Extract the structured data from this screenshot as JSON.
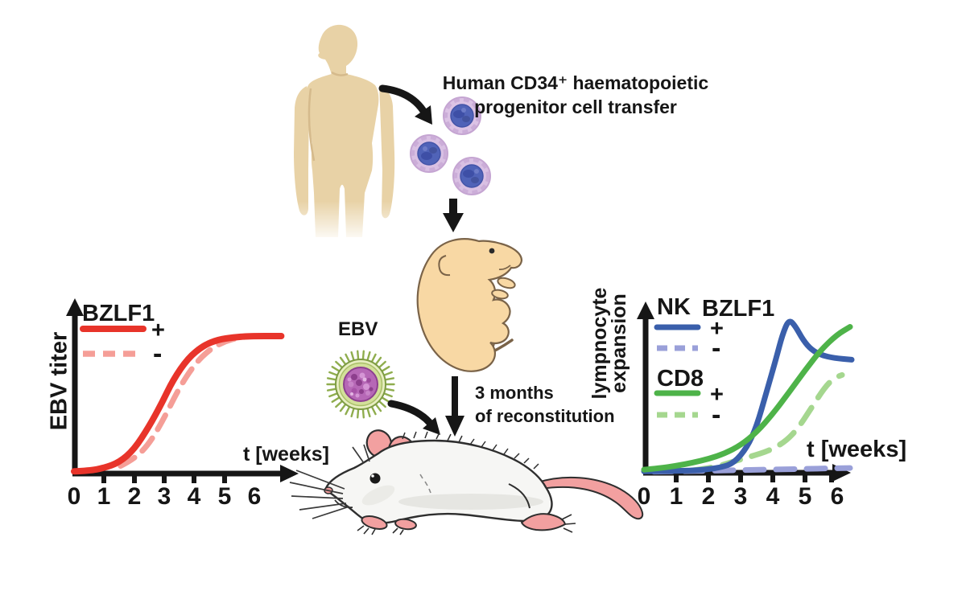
{
  "figure": {
    "title_line1": "Human CD34⁺ haematopoietic",
    "title_line2": "progenitor cell transfer",
    "ebv_label": "EBV",
    "reconstitution_line1": "3 months",
    "reconstitution_line2": "of reconstitution"
  },
  "colors": {
    "bzlf1_pos_red": "#e8342a",
    "bzlf1_neg_pink": "#f59e97",
    "nk_pos_blue": "#3a5fab",
    "nk_neg_periwinkle": "#9aa0d9",
    "cd8_pos_green": "#4eb349",
    "cd8_neg_lightgreen": "#a5d78f",
    "axis_black": "#161616",
    "human_skin": "#e8d2a6",
    "pup_skin": "#f8d8a4",
    "mouse_pink": "#f2a0a0"
  },
  "chart_data": [
    {
      "id": "left",
      "type": "line",
      "ylabel": "EBV titer",
      "xlabel": "t [weeks]",
      "x_ticks": [
        "0",
        "1",
        "2",
        "3",
        "4",
        "5",
        "6"
      ],
      "xlim": [
        0,
        7
      ],
      "ylim_relative": [
        0,
        1.05
      ],
      "grid": false,
      "legend_position": "top-left",
      "legend": {
        "title": "BZLF1",
        "entries": [
          {
            "label": "+",
            "style": "solid"
          },
          {
            "label": "-",
            "style": "dashed"
          }
        ]
      },
      "series": [
        {
          "name": "BZLF1-negative-dashed",
          "color": "#f59e97",
          "style": "dashed",
          "points": [
            [
              1.55,
              0.05
            ],
            [
              2,
              0.1
            ],
            [
              2.5,
              0.21
            ],
            [
              3,
              0.4
            ],
            [
              3.5,
              0.62
            ],
            [
              4,
              0.79
            ],
            [
              4.5,
              0.9
            ],
            [
              5,
              0.96
            ],
            [
              5.5,
              0.99
            ],
            [
              5.95,
              1.0
            ]
          ]
        },
        {
          "name": "BZLF1-positive-solid",
          "color": "#e8342a",
          "style": "solid",
          "points": [
            [
              0,
              0.01
            ],
            [
              0.5,
              0.015
            ],
            [
              1,
              0.035
            ],
            [
              1.5,
              0.075
            ],
            [
              2,
              0.17
            ],
            [
              2.5,
              0.34
            ],
            [
              2.9,
              0.5
            ],
            [
              3.3,
              0.68
            ],
            [
              3.8,
              0.84
            ],
            [
              4.3,
              0.93
            ],
            [
              4.8,
              0.975
            ],
            [
              5.3,
              0.99
            ],
            [
              5.8,
              1.0
            ],
            [
              6.9,
              1.0
            ]
          ]
        }
      ]
    },
    {
      "id": "right",
      "type": "line",
      "ylabel_line1": "lympnocyte",
      "ylabel_line2": "expansion",
      "xlabel": "t [weeks]",
      "x_ticks": [
        "0",
        "1",
        "2",
        "3",
        "4",
        "5",
        "6"
      ],
      "xlim": [
        0,
        6.6
      ],
      "ylim_relative": [
        0,
        1.05
      ],
      "grid": false,
      "legend_position": "top-left",
      "legend": {
        "group1_title": "NK",
        "bzlf1_header": "BZLF1",
        "group1_entries": [
          {
            "label": "+",
            "style": "solid"
          },
          {
            "label": "-",
            "style": "dashed"
          }
        ],
        "group2_title": "CD8",
        "group2_entries": [
          {
            "label": "+",
            "style": "solid"
          },
          {
            "label": "-",
            "style": "dashed"
          }
        ]
      },
      "series": [
        {
          "name": "NK-BZLF1-negative-dashed",
          "color": "#9aa0d9",
          "style": "dashed",
          "points": [
            [
              0.3,
              0.002
            ],
            [
              1.5,
              0.006
            ],
            [
              2.5,
              0.01
            ],
            [
              3.5,
              0.014
            ],
            [
              4.5,
              0.018
            ],
            [
              5.5,
              0.022
            ],
            [
              6.4,
              0.026
            ]
          ]
        },
        {
          "name": "CD8-BZLF1-negative-dashed",
          "color": "#a5d78f",
          "style": "dashed",
          "points": [
            [
              1.5,
              0.01
            ],
            [
              2.2,
              0.03
            ],
            [
              2.8,
              0.07
            ],
            [
              3.3,
              0.1
            ],
            [
              3.9,
              0.14
            ],
            [
              4.4,
              0.2
            ],
            [
              4.8,
              0.29
            ],
            [
              5.2,
              0.42
            ],
            [
              5.6,
              0.55
            ],
            [
              5.9,
              0.615
            ],
            [
              6.15,
              0.635
            ]
          ]
        },
        {
          "name": "NK-BZLF1-positive-solid",
          "color": "#3a5fab",
          "style": "solid",
          "points": [
            [
              0,
              0.004
            ],
            [
              1,
              0.006
            ],
            [
              1.8,
              0.012
            ],
            [
              2.4,
              0.03
            ],
            [
              2.8,
              0.06
            ],
            [
              3.2,
              0.16
            ],
            [
              3.5,
              0.3
            ],
            [
              3.8,
              0.52
            ],
            [
              4.1,
              0.74
            ],
            [
              4.3,
              0.9
            ],
            [
              4.5,
              1.0
            ],
            [
              4.7,
              0.955
            ],
            [
              4.95,
              0.86
            ],
            [
              5.2,
              0.8
            ],
            [
              5.5,
              0.765
            ],
            [
              5.9,
              0.745
            ],
            [
              6.45,
              0.735
            ]
          ]
        },
        {
          "name": "CD8-BZLF1-positive-solid",
          "color": "#4eb349",
          "style": "solid",
          "points": [
            [
              0,
              0.015
            ],
            [
              0.5,
              0.025
            ],
            [
              1,
              0.04
            ],
            [
              1.5,
              0.06
            ],
            [
              2,
              0.085
            ],
            [
              2.5,
              0.12
            ],
            [
              3,
              0.175
            ],
            [
              3.5,
              0.26
            ],
            [
              4,
              0.38
            ],
            [
              4.5,
              0.52
            ],
            [
              5,
              0.665
            ],
            [
              5.5,
              0.8
            ],
            [
              6,
              0.9
            ],
            [
              6.4,
              0.95
            ]
          ]
        }
      ]
    }
  ]
}
